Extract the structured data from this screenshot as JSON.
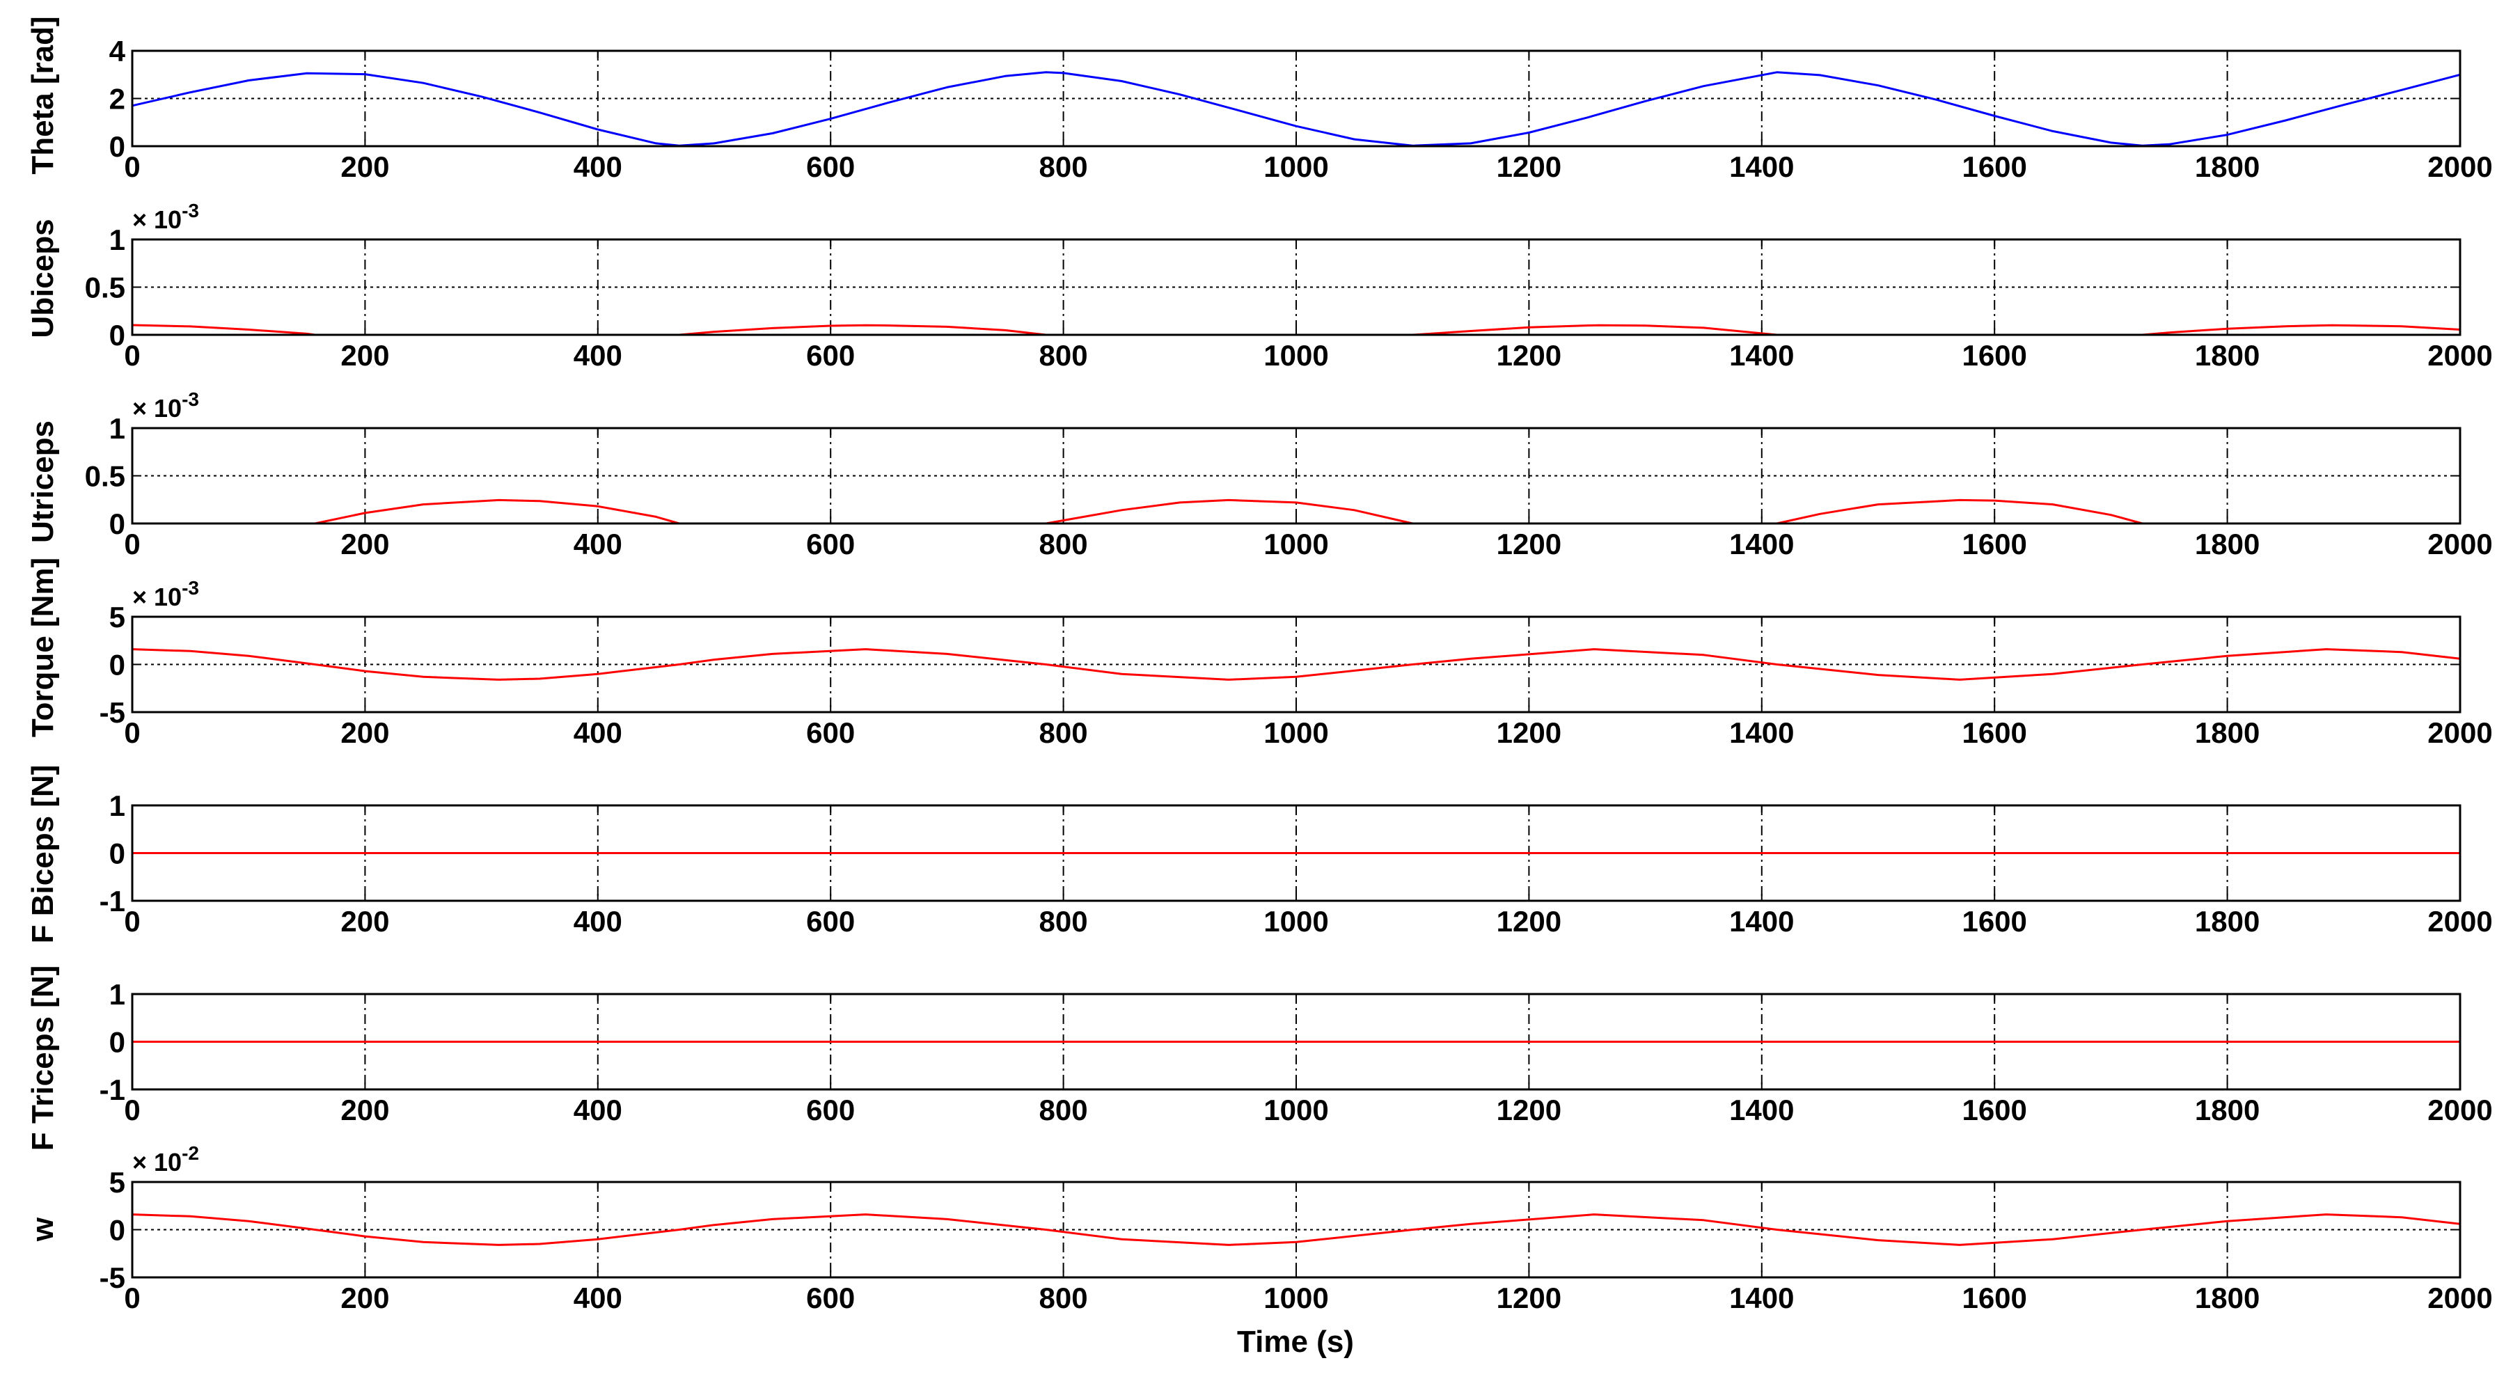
{
  "xlabel": "Time (s)",
  "chart_data": [
    {
      "type": "line",
      "ylabel": "Theta [rad]",
      "exponent": "",
      "xlim": [
        0,
        2000
      ],
      "ylim": [
        0,
        4
      ],
      "xticks": [
        "0",
        "200",
        "400",
        "600",
        "800",
        "1000",
        "1200",
        "1400",
        "1600",
        "1800",
        "2000"
      ],
      "yticks": [
        "0",
        "2",
        "4"
      ],
      "grid": true,
      "color": "#0000ff",
      "series": [
        {
          "x": [
            0,
            50,
            100,
            150,
            200,
            250,
            300,
            350,
            400,
            450,
            470,
            500,
            550,
            600,
            650,
            700,
            750,
            785,
            800,
            850,
            900,
            950,
            1000,
            1050,
            1100,
            1150,
            1200,
            1250,
            1300,
            1350,
            1413,
            1450,
            1500,
            1550,
            1600,
            1650,
            1700,
            1727,
            1750,
            1800,
            1850,
            1900,
            1950,
            2000
          ],
          "values": [
            1.7,
            2.26,
            2.76,
            3.06,
            3.02,
            2.65,
            2.08,
            1.41,
            0.7,
            0.12,
            0.02,
            0.12,
            0.54,
            1.15,
            1.83,
            2.47,
            2.94,
            3.1,
            3.07,
            2.73,
            2.17,
            1.51,
            0.84,
            0.29,
            0.02,
            0.12,
            0.57,
            1.2,
            1.89,
            2.52,
            3.1,
            2.98,
            2.55,
            1.95,
            1.27,
            0.63,
            0.15,
            0.02,
            0.08,
            0.48,
            1.08,
            1.73,
            2.36,
            3.0
          ]
        }
      ]
    },
    {
      "type": "line",
      "ylabel": "Ubiceps",
      "exponent": "-3",
      "xlim": [
        0,
        2000
      ],
      "ylim": [
        0,
        1
      ],
      "xticks": [
        "0",
        "200",
        "400",
        "600",
        "800",
        "1000",
        "1200",
        "1400",
        "1600",
        "1800",
        "2000"
      ],
      "yticks": [
        "0",
        "0.5",
        "1"
      ],
      "grid": true,
      "color": "#ff0000",
      "series": [
        {
          "x": [
            0,
            50,
            100,
            150,
            157,
            470,
            500,
            550,
            600,
            630,
            650,
            700,
            750,
            785,
            1100,
            1150,
            1200,
            1250,
            1260,
            1300,
            1350,
            1413,
            1727,
            1750,
            1800,
            1850,
            1890,
            1950,
            2000
          ],
          "values": [
            0.102,
            0.088,
            0.055,
            0.012,
            0,
            0,
            0.032,
            0.07,
            0.095,
            0.1,
            0.098,
            0.085,
            0.048,
            0,
            0,
            0.04,
            0.078,
            0.098,
            0.1,
            0.096,
            0.074,
            0,
            0,
            0.024,
            0.064,
            0.09,
            0.1,
            0.09,
            0.055
          ]
        }
      ]
    },
    {
      "type": "line",
      "ylabel": "Utriceps",
      "exponent": "-3",
      "xlim": [
        0,
        2000
      ],
      "ylim": [
        0,
        1
      ],
      "xticks": [
        "0",
        "200",
        "400",
        "600",
        "800",
        "1000",
        "1200",
        "1400",
        "1600",
        "1800",
        "2000"
      ],
      "yticks": [
        "0",
        "0.5",
        "1"
      ],
      "grid": true,
      "color": "#ff0000",
      "series": [
        {
          "x": [
            0,
            157,
            200,
            250,
            315,
            350,
            400,
            450,
            470,
            785,
            850,
            900,
            942,
            1000,
            1050,
            1100,
            1413,
            1450,
            1500,
            1570,
            1600,
            1650,
            1700,
            1727,
            2000
          ],
          "values": [
            0,
            0,
            0.11,
            0.2,
            0.245,
            0.235,
            0.18,
            0.07,
            0,
            0,
            0.14,
            0.22,
            0.245,
            0.22,
            0.14,
            0,
            0,
            0.1,
            0.2,
            0.245,
            0.24,
            0.2,
            0.09,
            0,
            0
          ]
        }
      ]
    },
    {
      "type": "line",
      "ylabel": "Torque [Nm]",
      "exponent": "-3",
      "xlim": [
        0,
        2000
      ],
      "ylim": [
        -5,
        5
      ],
      "xticks": [
        "0",
        "200",
        "400",
        "600",
        "800",
        "1000",
        "1200",
        "1400",
        "1600",
        "1800",
        "2000"
      ],
      "yticks": [
        "-5",
        "0",
        "5"
      ],
      "grid": true,
      "color": "#ff0000",
      "series": [
        {
          "x": [
            0,
            50,
            100,
            157,
            200,
            250,
            315,
            350,
            400,
            470,
            500,
            550,
            630,
            700,
            785,
            850,
            942,
            1000,
            1100,
            1150,
            1256,
            1350,
            1413,
            1500,
            1570,
            1650,
            1727,
            1800,
            1885,
            1950,
            2000
          ],
          "values": [
            1.6,
            1.4,
            0.9,
            0,
            -0.7,
            -1.3,
            -1.6,
            -1.5,
            -1.0,
            0,
            0.5,
            1.1,
            1.6,
            1.1,
            0,
            -1.0,
            -1.6,
            -1.3,
            0,
            0.6,
            1.6,
            1.0,
            0,
            -1.1,
            -1.6,
            -1.0,
            0,
            0.9,
            1.6,
            1.3,
            0.6
          ]
        }
      ]
    },
    {
      "type": "line",
      "ylabel": "F Biceps [N]",
      "exponent": "",
      "xlim": [
        0,
        2000
      ],
      "ylim": [
        -1,
        1
      ],
      "xticks": [
        "0",
        "200",
        "400",
        "600",
        "800",
        "1000",
        "1200",
        "1400",
        "1600",
        "1800",
        "2000"
      ],
      "yticks": [
        "-1",
        "0",
        "1"
      ],
      "grid": true,
      "color": "#ff0000",
      "series": [
        {
          "x": [
            0,
            2000
          ],
          "values": [
            0,
            0
          ]
        }
      ]
    },
    {
      "type": "line",
      "ylabel": "F Triceps [N]",
      "exponent": "",
      "xlim": [
        0,
        2000
      ],
      "ylim": [
        -1,
        1
      ],
      "xticks": [
        "0",
        "200",
        "400",
        "600",
        "800",
        "1000",
        "1200",
        "1400",
        "1600",
        "1800",
        "2000"
      ],
      "yticks": [
        "-1",
        "0",
        "1"
      ],
      "grid": true,
      "color": "#ff0000",
      "series": [
        {
          "x": [
            0,
            2000
          ],
          "values": [
            0,
            0
          ]
        }
      ]
    },
    {
      "type": "line",
      "ylabel": "w",
      "exponent": "-2",
      "xlim": [
        0,
        2000
      ],
      "ylim": [
        -5,
        5
      ],
      "xticks": [
        "0",
        "200",
        "400",
        "600",
        "800",
        "1000",
        "1200",
        "1400",
        "1600",
        "1800",
        "2000"
      ],
      "yticks": [
        "-5",
        "0",
        "5"
      ],
      "grid": true,
      "color": "#ff0000",
      "series": [
        {
          "x": [
            0,
            50,
            100,
            157,
            200,
            250,
            315,
            350,
            400,
            470,
            500,
            550,
            630,
            700,
            785,
            850,
            942,
            1000,
            1100,
            1150,
            1256,
            1350,
            1413,
            1500,
            1570,
            1650,
            1727,
            1800,
            1885,
            1950,
            2000
          ],
          "values": [
            1.6,
            1.4,
            0.9,
            0,
            -0.7,
            -1.3,
            -1.6,
            -1.5,
            -1.0,
            0,
            0.5,
            1.1,
            1.6,
            1.1,
            0,
            -1.0,
            -1.6,
            -1.3,
            0,
            0.6,
            1.6,
            1.0,
            0,
            -1.1,
            -1.6,
            -1.0,
            0,
            0.9,
            1.6,
            1.3,
            0.6
          ]
        }
      ]
    }
  ]
}
